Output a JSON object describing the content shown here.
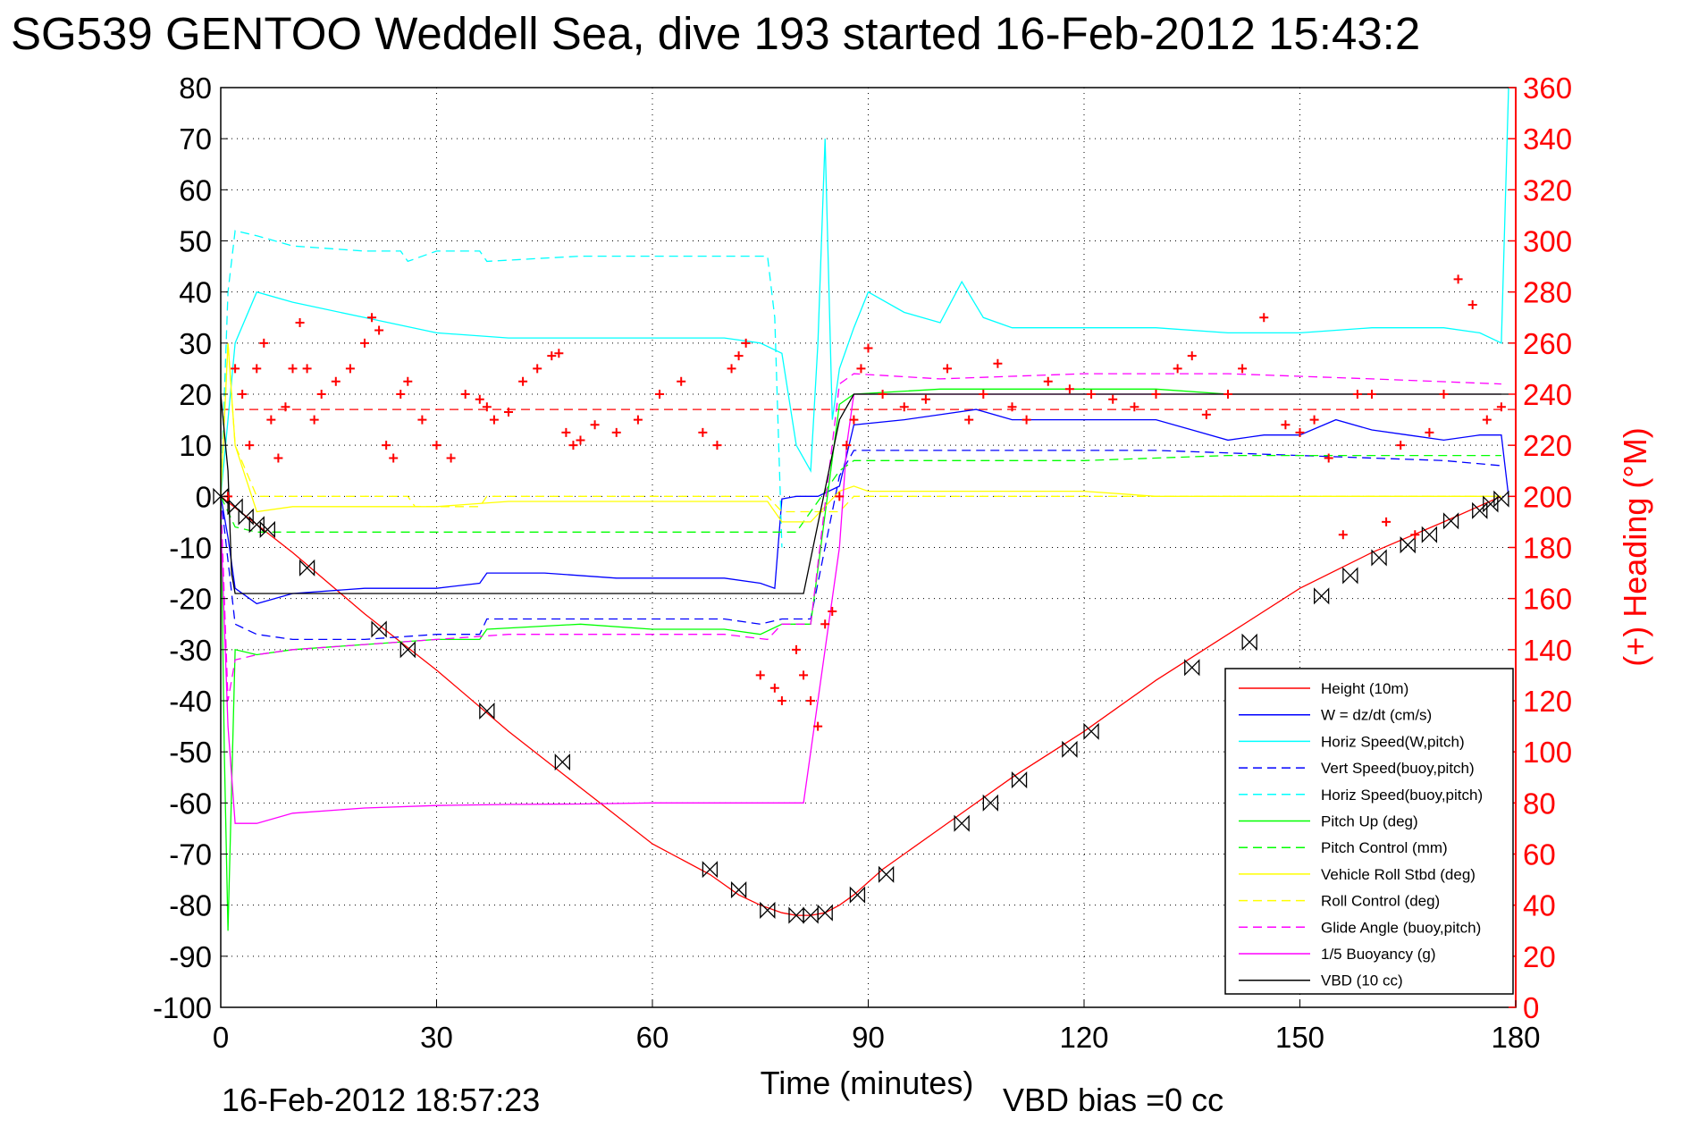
{
  "title": "SG539 GENTOO Weddell Sea, dive 193 started 16-Feb-2012 15:43:2",
  "footer": {
    "timestamp": "16-Feb-2012 18:57:23",
    "vbd_bias": "VBD bias =0 cc"
  },
  "colors": {
    "height": "#ff0000",
    "w": "#0000ff",
    "horiz": "#00ffff",
    "pitch": "#00ff00",
    "roll": "#ffff00",
    "glide": "#ff00ff",
    "vbd": "#000000",
    "heading": "#ff0000"
  },
  "chart_data": {
    "type": "line",
    "xlabel": "Time (minutes)",
    "ylabel_right": "(+) Heading (°M)",
    "xlim": [
      0,
      180
    ],
    "ylim": [
      -100,
      80
    ],
    "ylim_right": [
      0,
      360
    ],
    "x_ticks": [
      "0",
      "30",
      "60",
      "90",
      "120",
      "150",
      "180"
    ],
    "y_ticks": [
      "80",
      "70",
      "60",
      "50",
      "40",
      "30",
      "20",
      "10",
      "0",
      "-10",
      "-20",
      "-30",
      "-40",
      "-50",
      "-60",
      "-70",
      "-80",
      "-90",
      "-100"
    ],
    "y_ticks_right": [
      "360",
      "340",
      "320",
      "300",
      "280",
      "260",
      "240",
      "220",
      "200",
      "180",
      "160",
      "140",
      "120",
      "100",
      "80",
      "60",
      "40",
      "20",
      "0"
    ],
    "grid": true,
    "legend_position": "bottom-right",
    "legend": [
      {
        "label": "Height (10m)",
        "color": "#ff0000",
        "style": "solid"
      },
      {
        "label": "W = dz/dt (cm/s)",
        "color": "#0000ff",
        "style": "solid"
      },
      {
        "label": "Horiz Speed(W,pitch)",
        "color": "#00ffff",
        "style": "solid"
      },
      {
        "label": "Vert Speed(buoy,pitch)",
        "color": "#0000ff",
        "style": "dashed"
      },
      {
        "label": "Horiz Speed(buoy,pitch)",
        "color": "#00ffff",
        "style": "dashed"
      },
      {
        "label": "Pitch Up (deg)",
        "color": "#00ff00",
        "style": "solid"
      },
      {
        "label": "Pitch Control (mm)",
        "color": "#00ff00",
        "style": "dashed"
      },
      {
        "label": "Vehicle Roll Stbd (deg)",
        "color": "#ffff00",
        "style": "solid"
      },
      {
        "label": "Roll Control (deg)",
        "color": "#ffff00",
        "style": "dashed"
      },
      {
        "label": "Glide Angle (buoy,pitch)",
        "color": "#ff00ff",
        "style": "dashed"
      },
      {
        "label": "1/5 Buoyancy (g)",
        "color": "#ff00ff",
        "style": "solid"
      },
      {
        "label": "VBD (10 cc)",
        "color": "#000000",
        "style": "solid"
      }
    ],
    "series": [
      {
        "name": "Height (10m)",
        "color": "#ff0000",
        "dash": "",
        "x": [
          0,
          10,
          20,
          30,
          40,
          50,
          60,
          68,
          72,
          75,
          78,
          80,
          82,
          84,
          86,
          88,
          92,
          100,
          110,
          120,
          130,
          140,
          150,
          160,
          170,
          178
        ],
        "y": [
          0,
          -11,
          -23,
          -34,
          -46,
          -57,
          -68,
          -74,
          -78,
          -80,
          -81.5,
          -82,
          -82,
          -81.5,
          -80,
          -78,
          -73,
          -65,
          -55,
          -46,
          -36,
          -27,
          -18,
          -11,
          -5,
          0
        ]
      },
      {
        "name": "W = dz/dt (cm/s)",
        "color": "#0000ff",
        "dash": "",
        "x": [
          0,
          1,
          2,
          5,
          10,
          20,
          30,
          36,
          37,
          45,
          55,
          65,
          70,
          75,
          77,
          78,
          80,
          83,
          86,
          88,
          95,
          100,
          105,
          110,
          120,
          130,
          135,
          140,
          145,
          150,
          155,
          160,
          165,
          170,
          175,
          178,
          179
        ],
        "y": [
          0,
          -8,
          -18,
          -21,
          -19,
          -18,
          -18,
          -17,
          -15,
          -15,
          -16,
          -16,
          -16,
          -17,
          -18,
          -0.5,
          0,
          0,
          2,
          14,
          15,
          16,
          17,
          15,
          15,
          15,
          13,
          11,
          12,
          12,
          15,
          13,
          12,
          11,
          12,
          12,
          0
        ]
      },
      {
        "name": "Horiz Speed(W,pitch)",
        "color": "#00ffff",
        "dash": "",
        "x": [
          0,
          1,
          2,
          5,
          10,
          20,
          30,
          40,
          50,
          60,
          70,
          75,
          78,
          80,
          82,
          83,
          84,
          85,
          86,
          88,
          90,
          95,
          100,
          103,
          106,
          110,
          120,
          130,
          140,
          150,
          160,
          170,
          175,
          178,
          179
        ],
        "y": [
          0,
          15,
          30,
          40,
          38,
          35,
          32,
          31,
          31,
          31,
          31,
          30,
          28,
          10,
          5,
          30,
          70,
          15,
          25,
          33,
          40,
          36,
          34,
          42,
          35,
          33,
          33,
          33,
          32,
          32,
          33,
          33,
          32,
          30,
          80
        ]
      },
      {
        "name": "Vert Speed(buoy,pitch)",
        "color": "#0000ff",
        "dash": "10,6",
        "x": [
          0,
          2,
          5,
          10,
          20,
          30,
          36,
          37,
          50,
          60,
          70,
          75,
          78,
          82,
          86,
          88,
          95,
          110,
          130,
          150,
          170,
          178
        ],
        "y": [
          0,
          -25,
          -27,
          -28,
          -28,
          -27,
          -27,
          -24,
          -24,
          -24,
          -24,
          -25,
          -24,
          -24,
          4,
          9,
          9,
          9,
          9,
          8,
          7,
          6
        ]
      },
      {
        "name": "Horiz Speed(buoy,pitch)",
        "color": "#00ffff",
        "dash": "10,6",
        "x": [
          0,
          1,
          2,
          5,
          10,
          20,
          25,
          26,
          30,
          36,
          37,
          50,
          60,
          70,
          76,
          77,
          78
        ],
        "y": [
          0,
          40,
          52,
          51,
          49,
          48,
          48,
          46,
          48,
          48,
          46,
          47,
          47,
          47,
          47,
          35,
          -10
        ]
      },
      {
        "name": "Pitch Up (deg)",
        "color": "#00ff00",
        "dash": "",
        "x": [
          0,
          0.5,
          1,
          2,
          5,
          10,
          20,
          30,
          36,
          37,
          50,
          60,
          70,
          75,
          78,
          82,
          86,
          88,
          100,
          110,
          120,
          130,
          140,
          150,
          160,
          170,
          178
        ],
        "y": [
          0,
          -50,
          -85,
          -30,
          -31,
          -30,
          -29,
          -28,
          -28,
          -26,
          -25,
          -26,
          -26,
          -27,
          -25,
          -25,
          18,
          20,
          21,
          21,
          21,
          21,
          20,
          20,
          20,
          20,
          20
        ]
      },
      {
        "name": "Pitch Control (mm)",
        "color": "#00ff00",
        "dash": "10,6",
        "x": [
          0,
          2,
          5,
          20,
          30,
          50,
          60,
          70,
          77,
          78,
          80,
          86,
          88,
          100,
          120,
          140,
          160,
          178
        ],
        "y": [
          0,
          -6,
          -7,
          -7,
          -7,
          -7,
          -7,
          -7,
          -7,
          -7,
          -7,
          5,
          7,
          7,
          7,
          8,
          8,
          8
        ]
      },
      {
        "name": "Vehicle Roll Stbd (deg)",
        "color": "#ffff00",
        "dash": "",
        "x": [
          0,
          1,
          2,
          5,
          10,
          20,
          30,
          40,
          50,
          60,
          70,
          76,
          78,
          82,
          86,
          88,
          90,
          100,
          110,
          120,
          130,
          140,
          150,
          160,
          170,
          178
        ],
        "y": [
          0,
          30,
          10,
          -3,
          -2,
          -2,
          -2,
          -1,
          -1,
          -1,
          -1,
          -1,
          -5,
          -5,
          1,
          2,
          1,
          1,
          1,
          1,
          0,
          0,
          0,
          0,
          0,
          0
        ]
      },
      {
        "name": "Roll Control (deg)",
        "color": "#ffff00",
        "dash": "10,6",
        "x": [
          0,
          1,
          2,
          5,
          26,
          27,
          36,
          37,
          60,
          76,
          78,
          86,
          88,
          120,
          150,
          178
        ],
        "y": [
          0,
          30,
          10,
          0,
          0,
          -2,
          -2,
          0,
          0,
          0,
          -3,
          -3,
          0,
          0,
          0,
          0
        ]
      },
      {
        "name": "Glide Angle (buoy,pitch)",
        "color": "#ff00ff",
        "dash": "10,6",
        "x": [
          0,
          1,
          2,
          5,
          10,
          20,
          30,
          40,
          50,
          60,
          70,
          76,
          78,
          82,
          86,
          88,
          100,
          120,
          140,
          160,
          178
        ],
        "y": [
          0,
          -40,
          -32,
          -31,
          -30,
          -29,
          -28,
          -27,
          -27,
          -27,
          -27,
          -28,
          -25,
          -25,
          22,
          24,
          23,
          24,
          24,
          23,
          22
        ]
      },
      {
        "name": "1/5 Buoyancy (g)",
        "color": "#ff00ff",
        "dash": "",
        "x": [
          0,
          1,
          2,
          5,
          10,
          20,
          30,
          40,
          50,
          60,
          70,
          77,
          80,
          81,
          84,
          86,
          87,
          88,
          100,
          120,
          140,
          160,
          178
        ],
        "y": [
          -5,
          -45,
          -64,
          -64,
          -62,
          -61,
          -60.5,
          -60.3,
          -60.2,
          -60,
          -60,
          -60,
          -60,
          -60,
          -30,
          -10,
          10,
          20,
          20,
          20,
          20,
          20,
          20
        ]
      },
      {
        "name": "VBD (10 cc)",
        "color": "#000000",
        "dash": "",
        "x": [
          0,
          1,
          1.5,
          2,
          80,
          81,
          86,
          88,
          178,
          179
        ],
        "y": [
          20,
          5,
          -15,
          -19,
          -19,
          -19,
          15,
          20,
          20,
          20
        ]
      }
    ],
    "heading_series": {
      "name": "(+) Heading (°M)",
      "color": "#ff0000",
      "marker": "+",
      "x": [
        1,
        2,
        3,
        4,
        5,
        6,
        7,
        8,
        9,
        10,
        11,
        12,
        13,
        14,
        16,
        18,
        20,
        21,
        22,
        23,
        24,
        25,
        26,
        28,
        30,
        32,
        34,
        36,
        37,
        38,
        40,
        42,
        44,
        46,
        47,
        48,
        49,
        50,
        52,
        55,
        58,
        61,
        64,
        67,
        69,
        71,
        72,
        73,
        75,
        77,
        78,
        80,
        81,
        82,
        83,
        84,
        85,
        86,
        87,
        88,
        89,
        90,
        92,
        95,
        98,
        101,
        104,
        106,
        108,
        110,
        112,
        115,
        118,
        121,
        124,
        127,
        130,
        133,
        135,
        137,
        140,
        142,
        145,
        148,
        150,
        152,
        154,
        156,
        158,
        160,
        162,
        164,
        166,
        168,
        170,
        172,
        174,
        176,
        178
      ],
      "y": [
        200,
        250,
        240,
        220,
        250,
        260,
        230,
        215,
        235,
        250,
        268,
        250,
        230,
        240,
        245,
        250,
        260,
        270,
        265,
        220,
        215,
        240,
        245,
        230,
        220,
        215,
        240,
        238,
        235,
        230,
        233,
        245,
        250,
        255,
        256,
        225,
        220,
        222,
        228,
        225,
        230,
        240,
        245,
        225,
        220,
        250,
        255,
        260,
        130,
        125,
        120,
        140,
        130,
        120,
        110,
        150,
        155,
        200,
        220,
        230,
        250,
        258,
        240,
        235,
        238,
        250,
        230,
        240,
        252,
        235,
        230,
        245,
        242,
        240,
        238,
        235,
        240,
        250,
        255,
        232,
        240,
        250,
        270,
        228,
        225,
        230,
        215,
        185,
        240,
        240,
        190,
        220,
        185,
        225,
        240,
        285,
        275,
        230,
        235
      ]
    },
    "ref_line": {
      "color": "#ff0000",
      "dash": "10,6",
      "heading_value": 234
    },
    "markers": {
      "symbol": "bowtie",
      "color": "#000000",
      "x": [
        0,
        2,
        3.5,
        5,
        6.5,
        12,
        22,
        26,
        37,
        47.5,
        68,
        72,
        76,
        80,
        82,
        84,
        88.5,
        92.5,
        103,
        107,
        111,
        118,
        121,
        135,
        143,
        153,
        157,
        161,
        165,
        168,
        171,
        175,
        176.5,
        178
      ],
      "y": [
        0,
        -2,
        -4,
        -5.5,
        -6.5,
        -14,
        -26,
        -30,
        -42,
        -52,
        -73,
        -77,
        -81,
        -82,
        -82,
        -81.5,
        -78,
        -74,
        -64,
        -60,
        -55.5,
        -49.5,
        -46,
        -33.5,
        -28.5,
        -19.5,
        -15.5,
        -12,
        -9.5,
        -7.5,
        -4.8,
        -2.8,
        -1.5,
        -0.5
      ]
    }
  }
}
